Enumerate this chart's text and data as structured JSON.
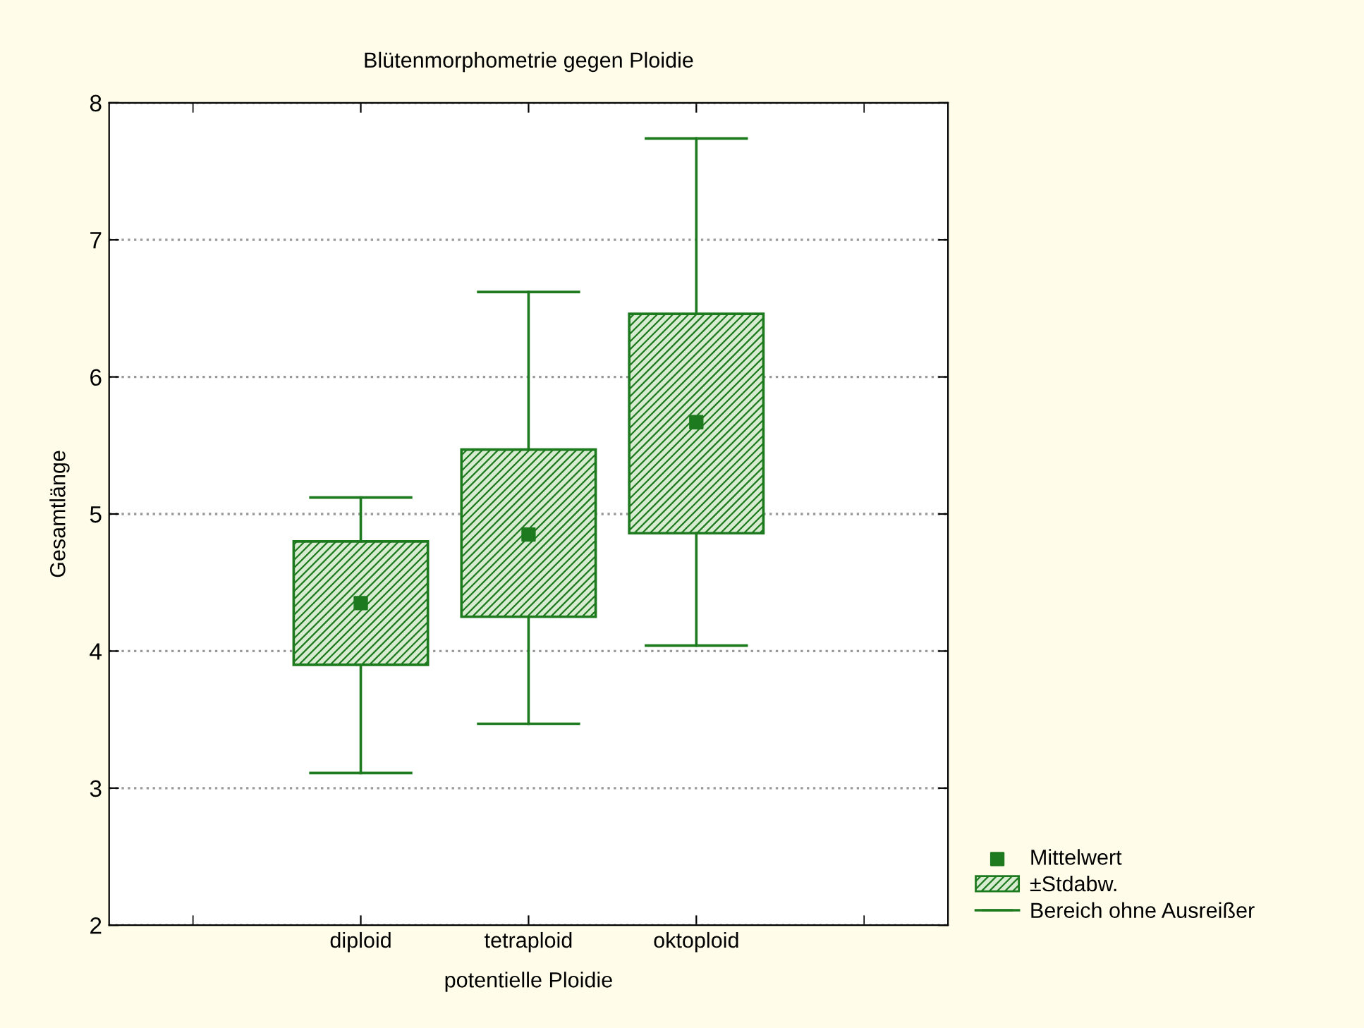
{
  "chart_data": {
    "type": "box",
    "title": "Blütenmorphometrie gegen Ploidie",
    "xlabel": "potentielle Ploidie",
    "ylabel": "Gesamtlänge",
    "categories": [
      "diploid",
      "tetraploid",
      "oktoploid"
    ],
    "series": [
      {
        "name": "±Stdabw.",
        "color": "#1e7a1e",
        "boxes": [
          {
            "low": 3.11,
            "q1": 3.9,
            "q3": 4.8,
            "high": 5.12
          },
          {
            "low": 3.47,
            "q1": 4.25,
            "q3": 5.47,
            "high": 6.62
          },
          {
            "low": 4.04,
            "q1": 4.86,
            "q3": 6.46,
            "high": 7.74
          }
        ]
      },
      {
        "name": "Mittelwert",
        "type": "scatter",
        "color": "#1e7a1e",
        "x": [
          "diploid",
          "tetraploid",
          "oktoploid"
        ],
        "values": [
          4.35,
          4.85,
          5.67
        ]
      }
    ],
    "ylim": [
      2,
      8
    ],
    "yticks": [
      2,
      3,
      4,
      5,
      6,
      7,
      8
    ],
    "grid": "y",
    "legend": "bottom right",
    "marker": "square",
    "annotations": [
      "Bereich ohne Ausreißer"
    ]
  }
}
